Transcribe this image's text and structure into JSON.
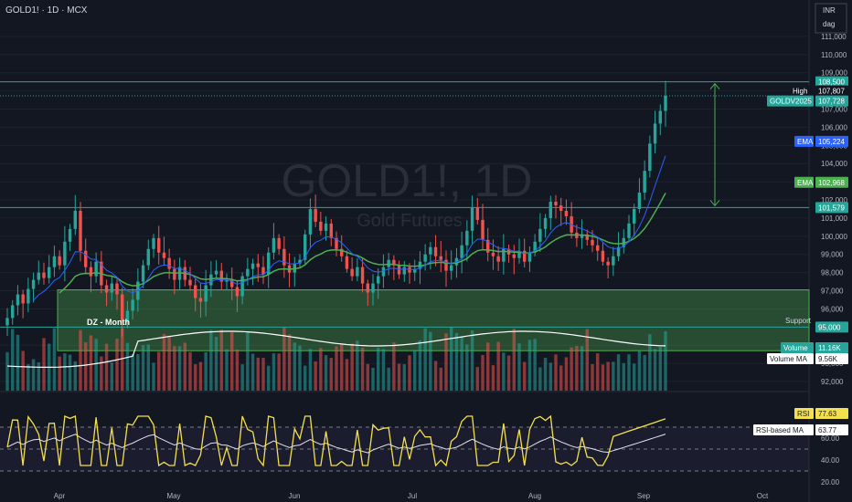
{
  "header": {
    "symbol_line": "GOLD1! · 1D · MCX"
  },
  "watermark": {
    "title": "GOLD1!, 1D",
    "subtitle": "Gold Futures"
  },
  "currency": {
    "code": "INR",
    "unit": "dag"
  },
  "colors": {
    "background": "#131722",
    "grid": "#1e222d",
    "up": "#26a69a",
    "down": "#ef5350",
    "ema_fast": "#2962ff",
    "ema_slow": "#4caf50",
    "zone_fill": "#4caf50",
    "rsi": "#f4e04d",
    "rsi_ma": "#e0e3eb",
    "volume_ma": "#ffffff"
  },
  "chart_data": {
    "type": "candlestick",
    "price_axis": {
      "ylim": [
        91500,
        112000
      ],
      "ticks": [
        "111,000",
        "110,000",
        "109,000",
        "108,000",
        "107,000",
        "106,000",
        "105,000",
        "104,000",
        "103,000",
        "102,000",
        "101,000",
        "100,000",
        "99,000",
        "98,000",
        "97,000",
        "96,000",
        "95,000",
        "94,000",
        "93,000",
        "92,000"
      ]
    },
    "time_axis": {
      "labels": [
        "Apr",
        "May",
        "Jun",
        "Jul",
        "Aug",
        "Sep",
        "Oct"
      ]
    },
    "levels": [
      {
        "name": "resistance",
        "value": 108500,
        "label": "108,500"
      },
      {
        "name": "support-low",
        "value": 101579,
        "label": "101,579"
      },
      {
        "name": "support",
        "value": 95000,
        "label": "95,000",
        "tag": "Support"
      }
    ],
    "zone": {
      "from": 93700,
      "to": 97050,
      "label": "DZ - Month"
    },
    "price_tags": [
      {
        "name": "High",
        "value": 107807,
        "label": "107,807"
      },
      {
        "name": "GOLDV2025",
        "value": 107728,
        "label": "107,728"
      },
      {
        "name": "EMA",
        "value": 105224,
        "label": "105,224"
      },
      {
        "name": "EMA",
        "value": 102968,
        "label": "102,968"
      }
    ],
    "volume": {
      "label": "Volume",
      "value": "11.16K",
      "ma_label": "Volume MA",
      "ma_value": "9.56K"
    },
    "closes": [
      95500,
      96200,
      96800,
      96300,
      97100,
      97600,
      98000,
      97700,
      98300,
      98900,
      98400,
      99700,
      100400,
      101400,
      99200,
      98300,
      97800,
      98600,
      97300,
      96900,
      97400,
      96800,
      95300,
      95900,
      96500,
      97500,
      98400,
      99300,
      99900,
      99100,
      98800,
      98200,
      97600,
      98300,
      97600,
      97300,
      96600,
      96400,
      97300,
      97900,
      98100,
      97500,
      97600,
      97200,
      96700,
      97800,
      98200,
      98500,
      98300,
      97900,
      99100,
      99900,
      99300,
      98400,
      98000,
      98500,
      98700,
      100100,
      101500,
      100800,
      100300,
      100700,
      99900,
      99300,
      98900,
      98200,
      97800,
      98300,
      97400,
      96900,
      97400,
      97800,
      98300,
      98700,
      98400,
      97900,
      98300,
      98000,
      98200,
      98600,
      99000,
      99400,
      98900,
      98700,
      98100,
      98400,
      98800,
      99500,
      100300,
      101600,
      100900,
      99800,
      99100,
      98900,
      98600,
      99300,
      99000,
      98800,
      99200,
      98600,
      99100,
      99700,
      100400,
      101000,
      101900,
      101700,
      101400,
      101100,
      100200,
      99900,
      100100,
      99800,
      99500,
      99200,
      98600,
      98400,
      98900,
      99400,
      99900,
      100700,
      101500,
      102400,
      103600,
      105100,
      106200,
      106900,
      107728
    ],
    "rsi": {
      "label": "RSI",
      "value": "77.63",
      "ma_label": "RSI-based MA",
      "ma_value": "63.77",
      "ylim": [
        10,
        100
      ],
      "ticks": [
        "60.00",
        "40.00",
        "20.00"
      ],
      "bands": [
        70,
        30
      ]
    }
  }
}
